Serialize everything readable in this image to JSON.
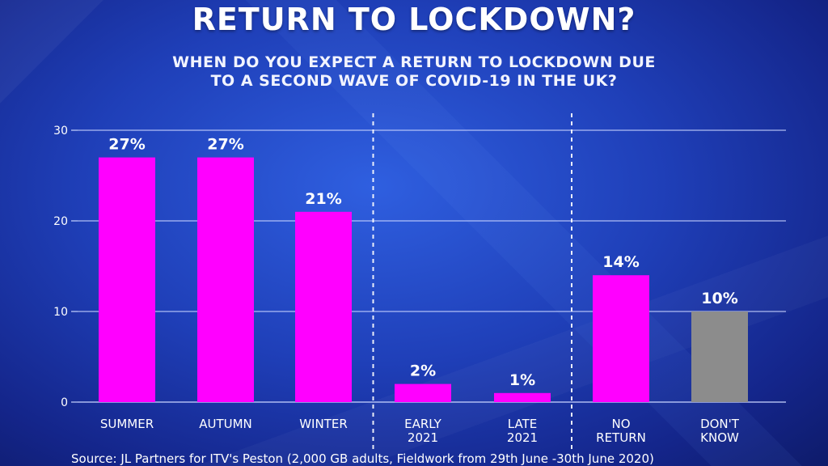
{
  "header": {
    "title": "RETURN TO LOCKDOWN?",
    "subtitle_lines": [
      "WHEN DO YOU EXPECT A RETURN TO LOCKDOWN DUE",
      "TO A SECOND WAVE OF COVID-19 IN THE UK?"
    ]
  },
  "footer": {
    "source": "Source: JL Partners for ITV's Peston (2,000 GB adults, Fieldwork from 29th June -30th June 2020)"
  },
  "colors": {
    "bar": "#ff00ff",
    "bar_dont_know": "#8c8c8c",
    "grid": "#c9d4ff",
    "text": "#ffffff"
  },
  "chart_data": {
    "type": "bar",
    "categories": [
      [
        "SUMMER"
      ],
      [
        "AUTUMN"
      ],
      [
        "WINTER"
      ],
      [
        "EARLY",
        "2021"
      ],
      [
        "LATE",
        "2021"
      ],
      [
        "NO",
        "RETURN"
      ],
      [
        "DON'T",
        "KNOW"
      ]
    ],
    "values": [
      27,
      27,
      21,
      2,
      1,
      14,
      10
    ],
    "value_labels": [
      "27%",
      "27%",
      "21%",
      "2%",
      "1%",
      "14%",
      "10%"
    ],
    "yticks": [
      0,
      10,
      20,
      30
    ],
    "ylim": [
      0,
      30
    ],
    "grid": true,
    "group_dividers_after_index": [
      2,
      4
    ]
  }
}
